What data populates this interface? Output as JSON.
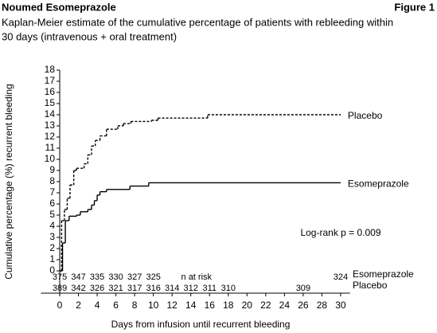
{
  "header": {
    "title": "Noumed Esomeprazole",
    "figure": "Figure 1",
    "subtitle": [
      "Kaplan-Meier estimate of the cumulative percentage of patients with rebleeding within",
      "30 days (intravenous + oral treatment)"
    ]
  },
  "chart_data": {
    "type": "step",
    "y_label": "Cumulative percentage (%) recurrent bleeding",
    "x_label": "Days from infusion until recurrent bleeding",
    "annotation": "Log-rank p = 0.009",
    "xlim": [
      -2,
      31
    ],
    "xticks": [
      0,
      2,
      4,
      6,
      8,
      10,
      12,
      14,
      16,
      18,
      20,
      22,
      24,
      26,
      28,
      30
    ],
    "ylim": [
      -2,
      18
    ],
    "yticks": [
      0,
      1,
      2,
      3,
      4,
      5,
      6,
      7,
      8,
      9,
      10,
      11,
      12,
      13,
      14,
      15,
      16,
      17,
      18
    ],
    "series": [
      {
        "name": "Placebo",
        "color": "#000000",
        "style": "dashed",
        "x": [
          0,
          0.2,
          0.5,
          0.8,
          1.1,
          1.5,
          1.8,
          2.6,
          3.0,
          3.4,
          3.8,
          4.3,
          5.0,
          6.2,
          6.8,
          7.6,
          9.8,
          10.5,
          15.8,
          30
        ],
        "values": [
          0,
          4.5,
          5.5,
          6.5,
          7.7,
          9,
          9.2,
          9.6,
          10.4,
          11.2,
          11.7,
          12.1,
          12.7,
          13,
          13.2,
          13.4,
          13.5,
          13.7,
          14,
          14
        ]
      },
      {
        "name": "Esomeprazole",
        "color": "#000000",
        "style": "solid",
        "x": [
          0,
          0.3,
          0.6,
          1.0,
          1.8,
          2.2,
          3.0,
          3.4,
          3.7,
          4.0,
          4.3,
          5.0,
          7.5,
          9.5,
          30
        ],
        "values": [
          0,
          2.5,
          4.5,
          4.9,
          5.0,
          5.3,
          5.5,
          5.9,
          6.3,
          6.8,
          7.1,
          7.3,
          7.6,
          7.9,
          7.9
        ]
      }
    ],
    "at_risk": {
      "label": "n at risk",
      "label_day": 14.6,
      "rows": [
        {
          "name": "Esomeprazole",
          "days": [
            0,
            2,
            4,
            6,
            8,
            10,
            30
          ],
          "counts": [
            375,
            347,
            335,
            330,
            327,
            325,
            324
          ]
        },
        {
          "name": "Placebo",
          "days": [
            0,
            2,
            4,
            6,
            8,
            10,
            12,
            14,
            16,
            18,
            26
          ],
          "counts": [
            389,
            342,
            326,
            321,
            317,
            316,
            314,
            312,
            311,
            310,
            309
          ]
        }
      ]
    }
  }
}
